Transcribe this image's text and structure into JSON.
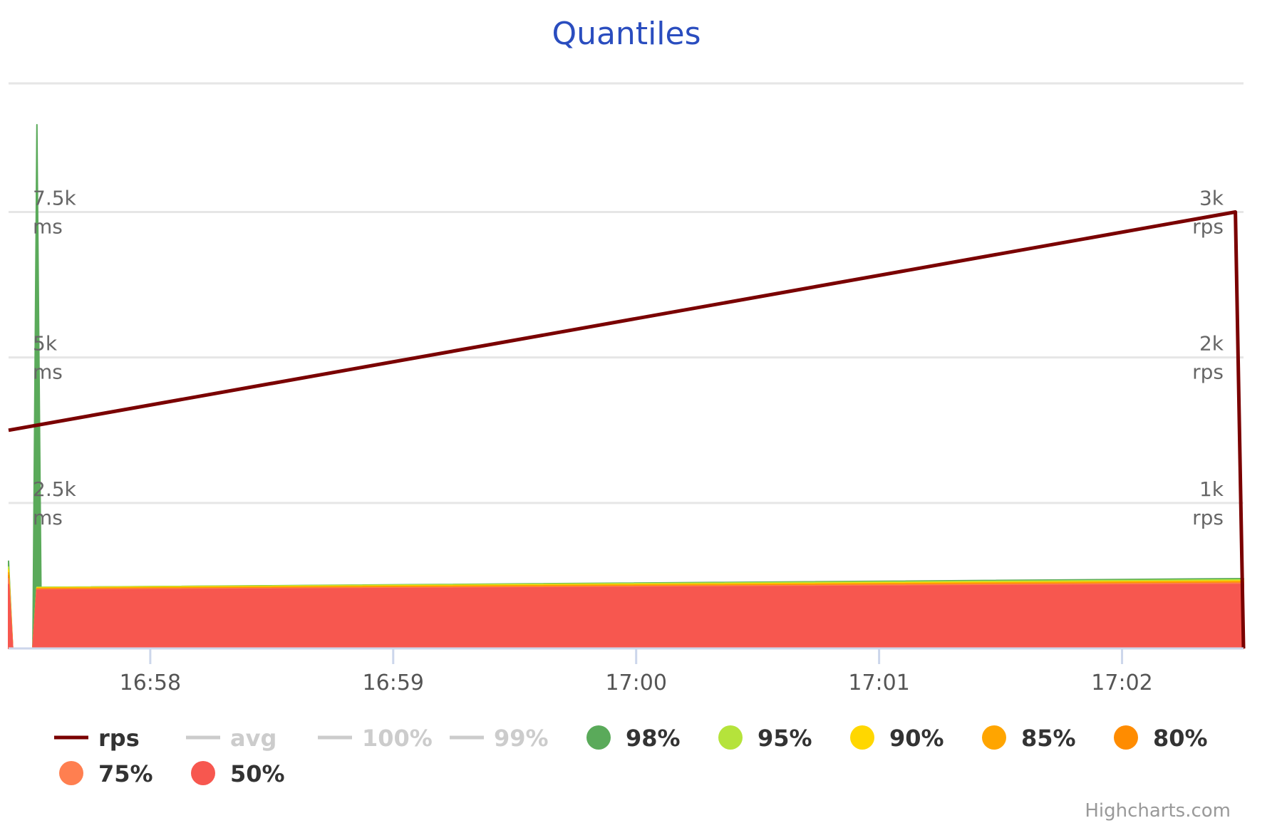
{
  "chart_data": {
    "type": "area",
    "title": "Quantiles",
    "credits": "Highcharts.com",
    "x_range": [
      "16:57:25",
      "17:02:30"
    ],
    "x_ticks": [
      "16:58",
      "16:59",
      "17:00",
      "17:01",
      "17:02"
    ],
    "y_left": {
      "unit": "ms",
      "range": [
        0,
        9000
      ],
      "ticks": [
        {
          "value": 2500,
          "label": "2.5k",
          "unit": "ms"
        },
        {
          "value": 5000,
          "label": "5k",
          "unit": "ms"
        },
        {
          "value": 7500,
          "label": "7.5k",
          "unit": "ms"
        }
      ]
    },
    "y_right": {
      "unit": "rps",
      "range": [
        0,
        3600
      ],
      "ticks": [
        {
          "value": 1000,
          "label": "1k",
          "unit": "rps"
        },
        {
          "value": 2000,
          "label": "2k",
          "unit": "rps"
        },
        {
          "value": 3000,
          "label": "3k",
          "unit": "rps"
        }
      ]
    },
    "legend_position": "bottom",
    "legend": [
      {
        "name": "rps",
        "color": "#7a0000",
        "symbol": "line",
        "visible": true
      },
      {
        "name": "avg",
        "color": "#cccccc",
        "symbol": "line",
        "visible": false
      },
      {
        "name": "100%",
        "color": "#cccccc",
        "symbol": "line",
        "visible": false
      },
      {
        "name": "99%",
        "color": "#cccccc",
        "symbol": "line",
        "visible": false
      },
      {
        "name": "98%",
        "color": "#5aaa5a",
        "symbol": "dot",
        "visible": true
      },
      {
        "name": "95%",
        "color": "#b5e33b",
        "symbol": "dot",
        "visible": true
      },
      {
        "name": "90%",
        "color": "#ffd700",
        "symbol": "dot",
        "visible": true
      },
      {
        "name": "85%",
        "color": "#ffa500",
        "symbol": "dot",
        "visible": true
      },
      {
        "name": "80%",
        "color": "#ff8c00",
        "symbol": "dot",
        "visible": true
      },
      {
        "name": "75%",
        "color": "#ff7f50",
        "symbol": "dot",
        "visible": true
      },
      {
        "name": "50%",
        "color": "#f7574f",
        "symbol": "dot",
        "visible": true
      }
    ],
    "series": [
      {
        "name": "rps",
        "axis": "right",
        "color": "#7a0000",
        "points": [
          {
            "x": "16:57:25",
            "y": 1500
          },
          {
            "x": "17:02:28",
            "y": 3000
          },
          {
            "x": "17:02:30",
            "y": 0
          }
        ]
      },
      {
        "name": "98%",
        "axis": "left",
        "color": "#5aaa5a",
        "points": [
          {
            "x": "16:57:25",
            "y": 1500
          },
          {
            "x": "16:57:26",
            "y": 0
          },
          {
            "x": "16:57:31",
            "y": 0
          },
          {
            "x": "16:57:32",
            "y": 9000
          },
          {
            "x": "16:57:33",
            "y": 1050
          },
          {
            "x": "17:02:30",
            "y": 1200
          }
        ]
      },
      {
        "name": "95%",
        "axis": "left",
        "color": "#b5e33b",
        "points": [
          {
            "x": "16:57:25",
            "y": 1400
          },
          {
            "x": "16:57:26",
            "y": 0
          },
          {
            "x": "16:57:31",
            "y": 0
          },
          {
            "x": "16:57:32",
            "y": 1050
          },
          {
            "x": "17:02:30",
            "y": 1180
          }
        ]
      },
      {
        "name": "90%",
        "axis": "left",
        "color": "#ffd700",
        "points": [
          {
            "x": "16:57:25",
            "y": 1350
          },
          {
            "x": "16:57:26",
            "y": 0
          },
          {
            "x": "16:57:31",
            "y": 0
          },
          {
            "x": "16:57:32",
            "y": 1040
          },
          {
            "x": "17:02:30",
            "y": 1160
          }
        ]
      },
      {
        "name": "85%",
        "axis": "left",
        "color": "#ffa500",
        "points": [
          {
            "x": "16:57:25",
            "y": 1300
          },
          {
            "x": "16:57:26",
            "y": 0
          },
          {
            "x": "16:57:31",
            "y": 0
          },
          {
            "x": "16:57:32",
            "y": 1030
          },
          {
            "x": "17:02:30",
            "y": 1150
          }
        ]
      },
      {
        "name": "80%",
        "axis": "left",
        "color": "#ff8c00",
        "points": [
          {
            "x": "16:57:25",
            "y": 1250
          },
          {
            "x": "16:57:26",
            "y": 0
          },
          {
            "x": "16:57:31",
            "y": 0
          },
          {
            "x": "16:57:32",
            "y": 1020
          },
          {
            "x": "17:02:30",
            "y": 1130
          }
        ]
      },
      {
        "name": "75%",
        "axis": "left",
        "color": "#ff7f50",
        "points": [
          {
            "x": "16:57:25",
            "y": 1200
          },
          {
            "x": "16:57:26",
            "y": 0
          },
          {
            "x": "16:57:31",
            "y": 0
          },
          {
            "x": "16:57:32",
            "y": 1010
          },
          {
            "x": "17:02:30",
            "y": 1120
          }
        ]
      },
      {
        "name": "50%",
        "axis": "left",
        "color": "#f7574f",
        "points": [
          {
            "x": "16:57:25",
            "y": 1100
          },
          {
            "x": "16:57:26",
            "y": 0
          },
          {
            "x": "16:57:31",
            "y": 0
          },
          {
            "x": "16:57:32",
            "y": 1000
          },
          {
            "x": "17:02:30",
            "y": 1100
          }
        ]
      }
    ]
  }
}
